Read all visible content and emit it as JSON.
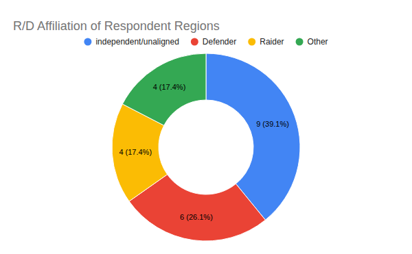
{
  "chart_data": {
    "type": "pie",
    "title": "R/D Affiliation of Respondent Regions",
    "categories": [
      "independent/unaligned",
      "Defender",
      "Raider",
      "Other"
    ],
    "values": [
      9,
      6,
      4,
      4
    ],
    "value_labels": [
      "9 (39.1%)",
      "6 (26.1%)",
      "4 (17.4%)",
      "4 (17.4%)"
    ],
    "colors": [
      "#4285f4",
      "#ea4335",
      "#fbbc04",
      "#34a853"
    ],
    "data_labels": true,
    "legend": "top"
  }
}
